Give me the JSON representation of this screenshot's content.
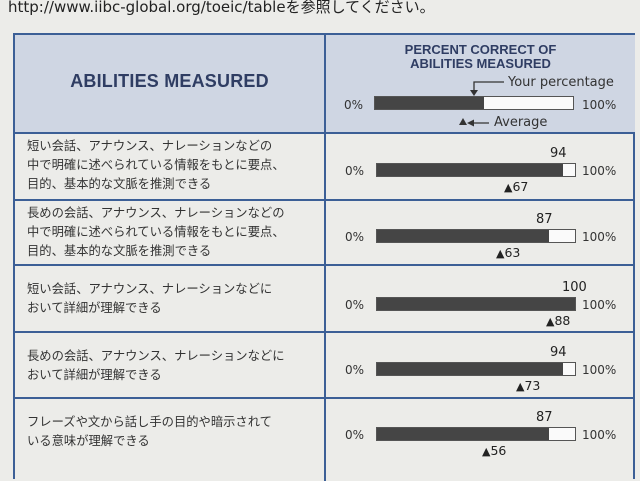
{
  "top_line": "http://www.iibc-global.org/toeic/tableを参照してください。",
  "header": {
    "abilities_title": "ABILITIES MEASURED",
    "pc_title_line1": "PERCENT CORRECT OF",
    "pc_title_line2": "ABILITIES MEASURED",
    "legend_your": "Your percentage",
    "legend_average": "Average",
    "legend_example_your": 0.55,
    "legend_example_average": 0.44
  },
  "scale": {
    "min_label": "0%",
    "max_label": "100%"
  },
  "colors": {
    "border": "#3c5f96",
    "header_bg": "#cfd6e3",
    "bar_fill": "#454545"
  },
  "rows": [
    {
      "lines": [
        "短い会話、アナウンス、ナレーションなどの",
        "中で明確に述べられている情報をもとに要点、",
        "目的、基本的な文脈を推測できる"
      ],
      "your": 94,
      "avg": 67
    },
    {
      "lines": [
        "長めの会話、アナウンス、ナレーションなどの",
        "中で明確に述べられている情報をもとに要点、",
        "目的、基本的な文脈を推測できる"
      ],
      "your": 87,
      "avg": 63
    },
    {
      "lines": [
        "短い会話、アナウンス、ナレーションなどに",
        "おいて詳細が理解できる"
      ],
      "your": 100,
      "avg": 88
    },
    {
      "lines": [
        "長めの会話、アナウンス、ナレーションなどに",
        "おいて詳細が理解できる"
      ],
      "your": 94,
      "avg": 73
    },
    {
      "lines": [
        "フレーズや文から話し手の目的や暗示されて",
        "いる意味が理解できる"
      ],
      "your": 87,
      "avg": 56
    }
  ]
}
